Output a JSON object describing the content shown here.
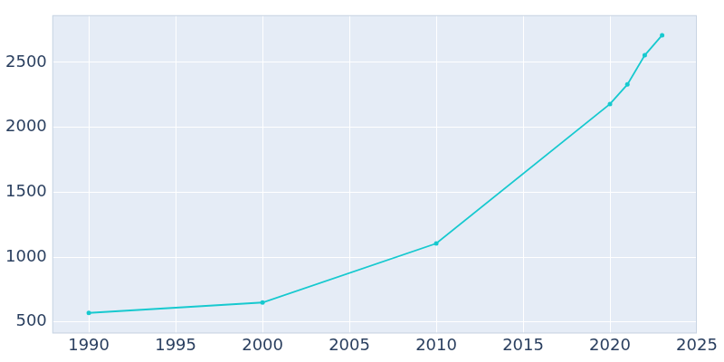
{
  "chart_data": {
    "type": "line",
    "x": [
      1990,
      2000,
      2010,
      2020,
      2021,
      2022,
      2023
    ],
    "values": [
      570,
      650,
      1105,
      2180,
      2330,
      2555,
      2710
    ],
    "color": "#17c9cf",
    "marker": "circle",
    "xlim": [
      1987.9,
      2025
    ],
    "xticks": [
      1990,
      1995,
      2000,
      2005,
      2010,
      2015,
      2020,
      2025
    ],
    "ylim": [
      412,
      2864
    ],
    "yticks": [
      500,
      1000,
      1500,
      2000,
      2500
    ],
    "grid": true
  }
}
